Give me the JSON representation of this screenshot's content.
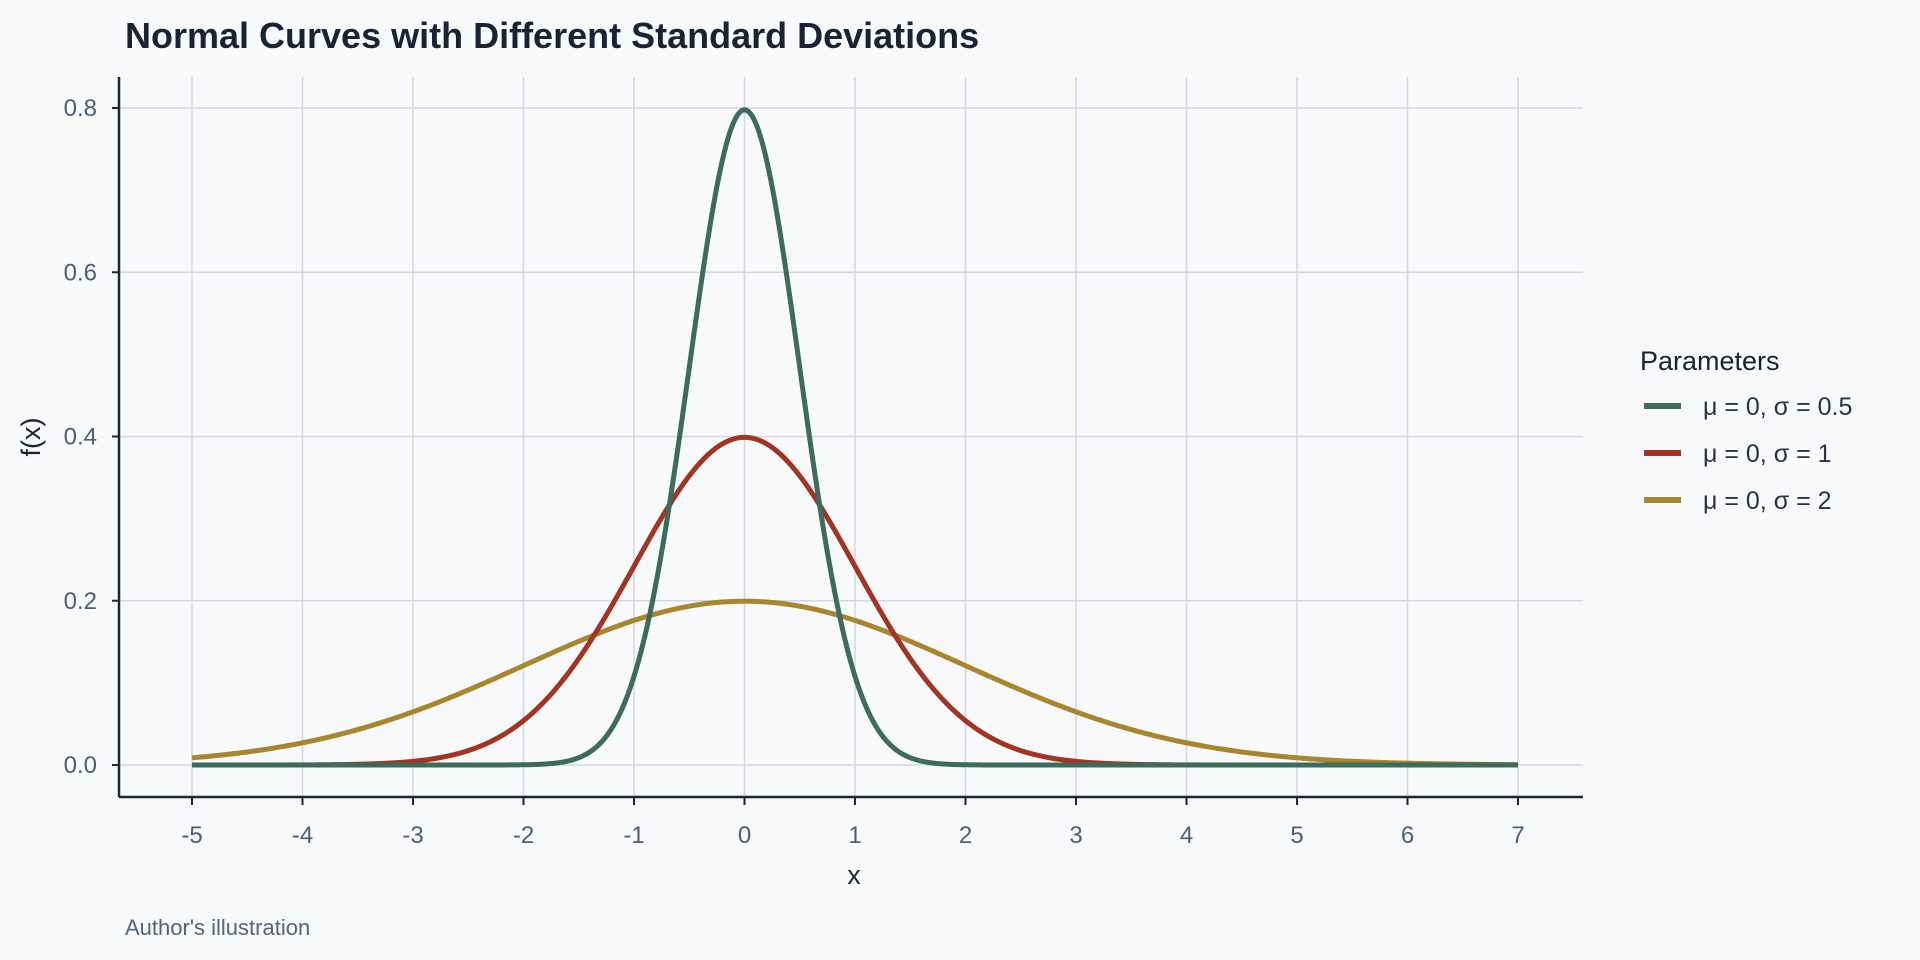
{
  "chart_data": {
    "type": "line",
    "title": "Normal Curves with Different Standard Deviations",
    "xlabel": "x",
    "ylabel": "f(x)",
    "caption": "Author's illustration",
    "xlim": [
      -5,
      7
    ],
    "ylim": [
      0,
      0.8
    ],
    "xticks": [
      "-5",
      "-4",
      "-3",
      "-2",
      "-1",
      "0",
      "1",
      "2",
      "3",
      "4",
      "5",
      "6",
      "7"
    ],
    "yticks": [
      "0.0",
      "0.2",
      "0.4",
      "0.6",
      "0.8"
    ],
    "grid": true,
    "legend": {
      "title": "Parameters",
      "placement": "right"
    },
    "series": [
      {
        "name": "μ = 0, σ = 0.5",
        "mu": 0,
        "sigma": 0.5,
        "color": "#3d6b5c",
        "peak": 0.798
      },
      {
        "name": "μ = 0, σ = 1",
        "mu": 0,
        "sigma": 1,
        "color": "#a43322",
        "peak": 0.399
      },
      {
        "name": "μ = 0, σ = 2",
        "mu": 0,
        "sigma": 2,
        "color": "#a8862e",
        "peak": 0.199
      }
    ]
  }
}
